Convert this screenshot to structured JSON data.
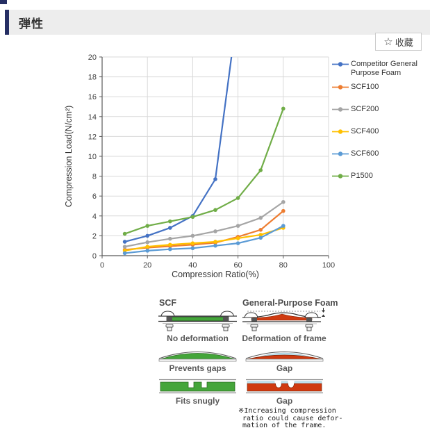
{
  "header": {
    "title": "弾性",
    "accent_color": "#252e63"
  },
  "favorite_button": {
    "star_glyph": "☆",
    "star_color": "#f0a63c",
    "label": "收藏"
  },
  "chart_data": {
    "type": "line",
    "title": "",
    "xlabel": "Compression Ratio(%)",
    "ylabel": "Compression Load(N/cm²)",
    "xlim": [
      0,
      100
    ],
    "ylim": [
      0,
      20
    ],
    "x_ticks": [
      0,
      20,
      40,
      60,
      80,
      100
    ],
    "y_ticks": [
      0,
      2,
      4,
      6,
      8,
      10,
      12,
      14,
      16,
      18,
      20
    ],
    "grid": true,
    "legend_position": "right",
    "x": [
      10,
      20,
      30,
      40,
      50,
      60,
      70,
      80
    ],
    "series": [
      {
        "name": "Competitor General Purpose Foam",
        "color": "#4472C4",
        "x": [
          10,
          20,
          30,
          40,
          50,
          60
        ],
        "values": [
          1.4,
          2.0,
          2.8,
          4.0,
          7.7,
          25
        ]
      },
      {
        "name": "SCF100",
        "color": "#ED7D31",
        "values": [
          0.6,
          0.8,
          0.95,
          1.1,
          1.3,
          1.9,
          2.6,
          4.5
        ]
      },
      {
        "name": "SCF200",
        "color": "#A5A5A5",
        "values": [
          0.9,
          1.35,
          1.7,
          2.0,
          2.45,
          3.0,
          3.8,
          5.4
        ]
      },
      {
        "name": "SCF400",
        "color": "#FFC000",
        "values": [
          0.5,
          0.9,
          1.1,
          1.25,
          1.4,
          1.75,
          2.1,
          2.8
        ]
      },
      {
        "name": "SCF600",
        "color": "#5B9BD5",
        "values": [
          0.25,
          0.5,
          0.65,
          0.75,
          1.0,
          1.25,
          1.8,
          3.0
        ]
      },
      {
        "name": "P1500",
        "color": "#70AD47",
        "values": [
          2.2,
          3.0,
          3.45,
          3.9,
          4.6,
          5.8,
          8.6,
          14.8
        ]
      }
    ]
  },
  "comparison": {
    "left_column_title": "SCF",
    "right_column_title": "General-Purpose Foam",
    "rows": [
      {
        "left_caption": "No deformation",
        "right_caption": "Deformation of frame"
      },
      {
        "left_caption": "Prevents gaps",
        "right_caption": "Gap"
      },
      {
        "left_caption": "Fits snugly",
        "right_caption": "Gap"
      }
    ],
    "footnote": "※Increasing compression\n ratio could cause defor-\n mation of the frame.",
    "colors": {
      "scf_foam": "#44a53a",
      "competitor_foam": "#cf3a10",
      "gap_highlight": "#bfe3ef",
      "frame_gray": "#666666"
    }
  }
}
